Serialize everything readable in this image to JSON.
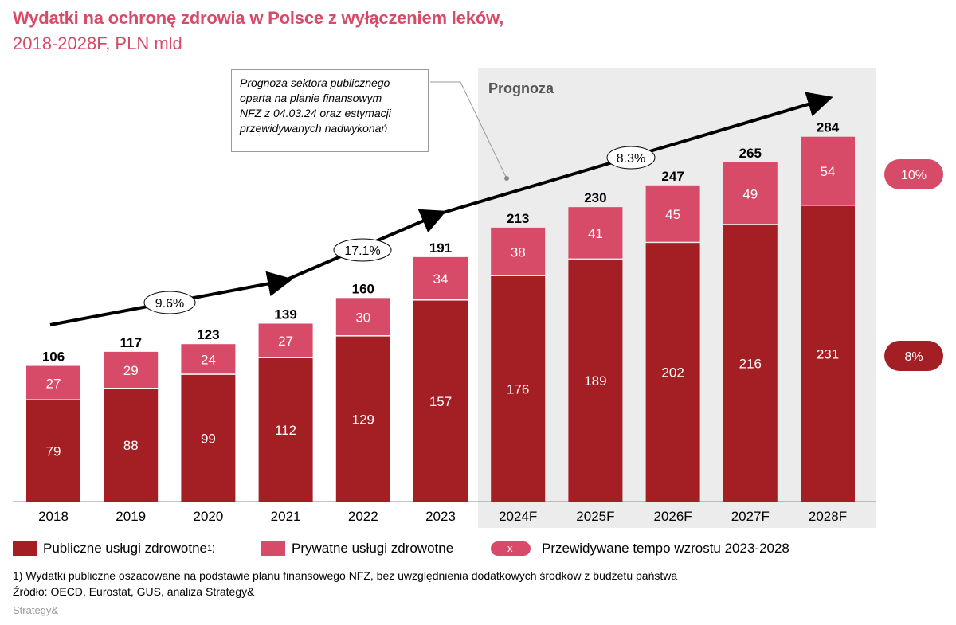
{
  "header": {
    "title": "Wydatki na ochronę zdrowia w Polsce z wyłączeniem leków,",
    "subtitle": "2018-2028F, PLN mld"
  },
  "callout": {
    "line1": "Prognoza sektora publicznego",
    "line2": "oparta na planie finansowym",
    "line3": "NFZ z 04.03.24 oraz estymacji",
    "line4": "przewidywanych nadwykonań"
  },
  "chart_data": {
    "type": "bar",
    "stacked": true,
    "categories": [
      "2018",
      "2019",
      "2020",
      "2021",
      "2022",
      "2023",
      "2024F",
      "2025F",
      "2026F",
      "2027F",
      "2028F"
    ],
    "series": [
      {
        "name": "Publiczne usługi zdrowotne",
        "color": "#a31f24",
        "values": [
          79,
          88,
          99,
          112,
          129,
          157,
          176,
          189,
          202,
          216,
          231
        ]
      },
      {
        "name": "Prywatne usługi zdrowotne",
        "color": "#d84b68",
        "values": [
          27,
          29,
          24,
          27,
          30,
          34,
          38,
          41,
          45,
          49,
          54
        ]
      }
    ],
    "totals": [
      106,
      117,
      123,
      139,
      160,
      191,
      213,
      230,
      247,
      265,
      284
    ],
    "forecast_label": "Prognoza",
    "forecast_start": "2024F",
    "growth_labels": [
      "9.6%",
      "17.1%",
      "8.3%"
    ],
    "cagr_2023_2028": {
      "private": "10%",
      "public": "8%"
    },
    "ylim": [
      0,
      300
    ]
  },
  "legend": {
    "public_label": "Publiczne usługi zdrowotne",
    "public_sup": "1)",
    "private_label": "Prywatne usługi zdrowotne",
    "growth_label": "Przewidywane tempo wzrostu 2023-2028",
    "growth_symbol": "x"
  },
  "footer": {
    "footnote": "1) Wydatki publiczne oszacowane na podstawie planu finansowego NFZ, bez uwzględnienia dodatkowych środków z budżetu państwa",
    "source": "Źródło: OECD, Eurostat, GUS, analiza Strategy&",
    "brand": "Strategy&"
  }
}
